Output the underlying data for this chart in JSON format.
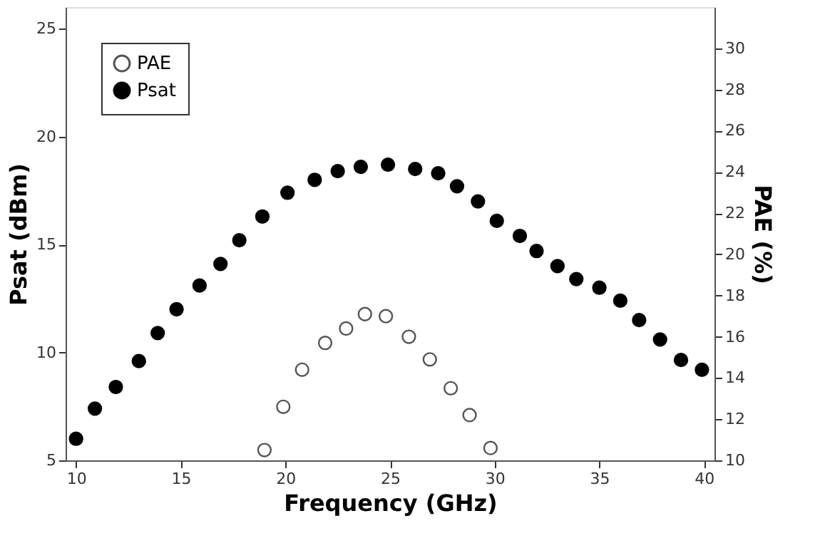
{
  "chart_data": {
    "type": "scatter",
    "xlabel": "Frequency (GHz)",
    "ylabel": "Psat (dBm)",
    "y2label": "PAE (%)",
    "xlim": [
      9.5,
      40.5
    ],
    "xticks": [
      10,
      15,
      20,
      25,
      30,
      35,
      40
    ],
    "ylim": [
      5,
      26
    ],
    "yticks": [
      5,
      10,
      15,
      20,
      25
    ],
    "y2lim": [
      10,
      32
    ],
    "y2ticks": [
      10,
      12,
      14,
      16,
      18,
      20,
      22,
      24,
      26,
      28,
      30
    ],
    "marker": "circle",
    "grid": false,
    "legend": "top left",
    "series": [
      {
        "name": "PAE",
        "color": "#555555",
        "axis": "y2",
        "x": [
          19.0,
          19.9,
          20.8,
          21.9,
          22.9,
          23.8,
          24.8,
          25.9,
          26.9,
          27.9,
          28.8,
          29.8
        ],
        "values": [
          10.5,
          12.6,
          14.4,
          15.7,
          16.4,
          17.1,
          17.0,
          16.0,
          14.9,
          13.5,
          12.2,
          10.6
        ]
      },
      {
        "name": "Psat",
        "color": "#000000",
        "x": [
          10,
          10.9,
          11.9,
          13,
          13.9,
          14.8,
          15.9,
          16.9,
          17.8,
          18.9,
          20.1,
          21.4,
          22.5,
          23.6,
          24.9,
          26.2,
          27.3,
          28.2,
          29.2,
          30.1,
          31.2,
          32,
          33,
          33.9,
          35,
          36,
          36.9,
          37.9,
          38.9,
          39.9
        ],
        "values": [
          6.0,
          7.4,
          8.4,
          9.6,
          10.9,
          12.0,
          13.1,
          14.1,
          15.2,
          16.3,
          17.4,
          18.0,
          18.4,
          18.6,
          18.7,
          18.5,
          18.3,
          17.7,
          17.0,
          16.1,
          15.4,
          14.7,
          14.0,
          13.4,
          13.0,
          12.4,
          11.5,
          10.6,
          9.65,
          9.2
        ]
      }
    ]
  }
}
